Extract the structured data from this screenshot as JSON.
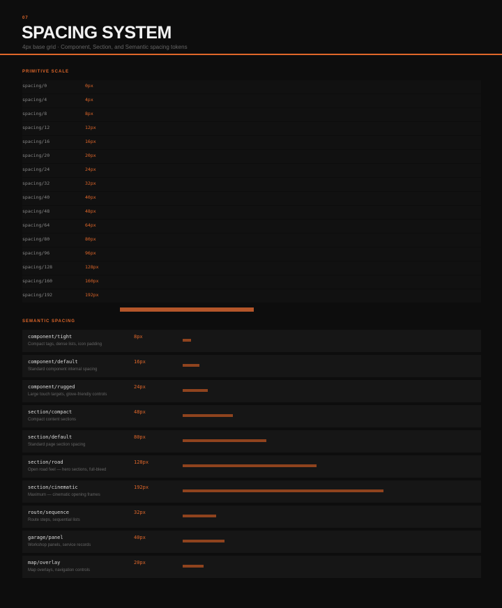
{
  "header": {
    "number": "07",
    "title": "SPACING SYSTEM",
    "subtitle": "4px base grid · Component, Section, and Semantic spacing tokens"
  },
  "primitive": {
    "heading": "PRIMITIVE SCALE",
    "rows": [
      {
        "name": "spacing/0",
        "value": 0,
        "label": "0px"
      },
      {
        "name": "spacing/4",
        "value": 4,
        "label": "4px"
      },
      {
        "name": "spacing/8",
        "value": 8,
        "label": "8px"
      },
      {
        "name": "spacing/12",
        "value": 12,
        "label": "12px"
      },
      {
        "name": "spacing/16",
        "value": 16,
        "label": "16px"
      },
      {
        "name": "spacing/20",
        "value": 20,
        "label": "20px"
      },
      {
        "name": "spacing/24",
        "value": 24,
        "label": "24px"
      },
      {
        "name": "spacing/32",
        "value": 32,
        "label": "32px"
      },
      {
        "name": "spacing/40",
        "value": 40,
        "label": "40px"
      },
      {
        "name": "spacing/48",
        "value": 48,
        "label": "48px"
      },
      {
        "name": "spacing/64",
        "value": 64,
        "label": "64px"
      },
      {
        "name": "spacing/80",
        "value": 80,
        "label": "80px"
      },
      {
        "name": "spacing/96",
        "value": 96,
        "label": "96px"
      },
      {
        "name": "spacing/128",
        "value": 128,
        "label": "128px"
      },
      {
        "name": "spacing/160",
        "value": 160,
        "label": "160px"
      },
      {
        "name": "spacing/192",
        "value": 192,
        "label": "192px"
      }
    ]
  },
  "semantic": {
    "heading": "SEMANTIC SPACING",
    "rows": [
      {
        "name": "component/tight",
        "description": "Compact tags, dense lists, icon padding",
        "value": 8,
        "label": "8px"
      },
      {
        "name": "component/default",
        "description": "Standard component internal spacing",
        "value": 16,
        "label": "16px"
      },
      {
        "name": "component/rugged",
        "description": "Large touch targets, glove-friendly controls",
        "value": 24,
        "label": "24px"
      },
      {
        "name": "section/compact",
        "description": "Compact content sections",
        "value": 48,
        "label": "48px"
      },
      {
        "name": "section/default",
        "description": "Standard page section spacing",
        "value": 80,
        "label": "80px"
      },
      {
        "name": "section/road",
        "description": "Open road feel — hero sections, full-bleed",
        "value": 128,
        "label": "128px"
      },
      {
        "name": "section/cinematic",
        "description": "Maximum — cinematic opening frames",
        "value": 192,
        "label": "192px"
      },
      {
        "name": "route/sequence",
        "description": "Route steps, sequential lists",
        "value": 32,
        "label": "32px"
      },
      {
        "name": "garage/panel",
        "description": "Workshop panels, service records",
        "value": 40,
        "label": "40px"
      },
      {
        "name": "map/overlay",
        "description": "Map overlays, navigation controls",
        "value": 20,
        "label": "20px"
      }
    ]
  }
}
